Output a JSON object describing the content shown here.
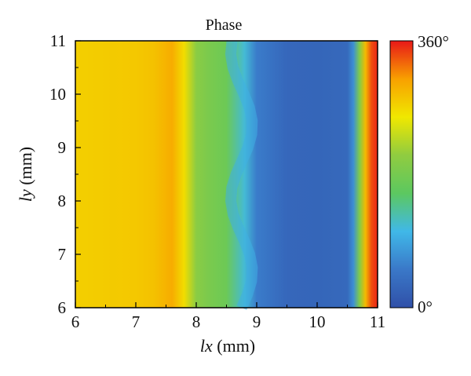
{
  "chart_data": {
    "type": "heatmap",
    "title": "Phase",
    "xlabel": {
      "italic": "lx",
      "unit": " (mm)"
    },
    "ylabel": {
      "italic": "ly",
      "unit": " (mm)"
    },
    "xlim": [
      6,
      11
    ],
    "ylim": [
      6,
      11
    ],
    "x_ticks": [
      "6",
      "7",
      "8",
      "9",
      "10",
      "11"
    ],
    "y_ticks": [
      "6",
      "7",
      "8",
      "9",
      "10",
      "11"
    ],
    "x_tick_values": [
      6,
      7,
      8,
      9,
      10,
      11
    ],
    "y_tick_values": [
      6,
      7,
      8,
      9,
      10,
      11
    ],
    "colorbar": {
      "min_label": "0°",
      "max_label": "360°",
      "range": [
        0,
        360
      ],
      "colormap": [
        "#3050a8",
        "#3a78c8",
        "#40b8e8",
        "#5cc860",
        "#90cc40",
        "#f0e800",
        "#f8a000",
        "#e81818"
      ]
    },
    "phase_vs_lx": {
      "lx": [
        6.0,
        6.5,
        7.0,
        7.3,
        7.6,
        7.8,
        8.0,
        8.2,
        8.5,
        8.8,
        9.0,
        9.5,
        10.0,
        10.5,
        10.6,
        10.7,
        10.8,
        10.9,
        11.0
      ],
      "phase_deg": [
        275,
        278,
        280,
        285,
        300,
        265,
        200,
        185,
        170,
        110,
        55,
        30,
        28,
        32,
        70,
        190,
        290,
        340,
        355
      ]
    },
    "grid": false
  }
}
